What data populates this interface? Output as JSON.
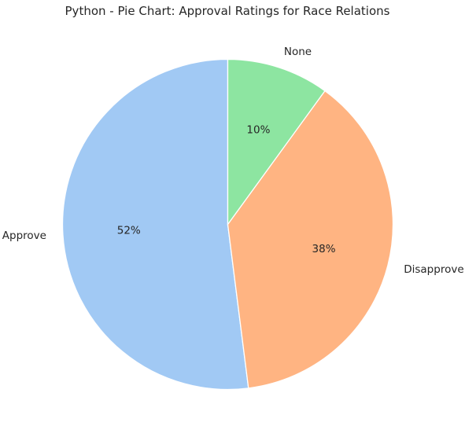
{
  "chart_data": {
    "type": "pie",
    "title": "Python - Pie Chart: Approval Ratings for Race Relations",
    "categories": [
      "Approve",
      "Disapprove",
      "None"
    ],
    "values": [
      52,
      38,
      10
    ],
    "percent_labels": [
      "52%",
      "38%",
      "10%"
    ],
    "colors": [
      "#a1c9f4",
      "#ffb482",
      "#8de5a1"
    ],
    "start_angle": "90 (top), counterclockwise",
    "legend": "none",
    "grid": false
  }
}
